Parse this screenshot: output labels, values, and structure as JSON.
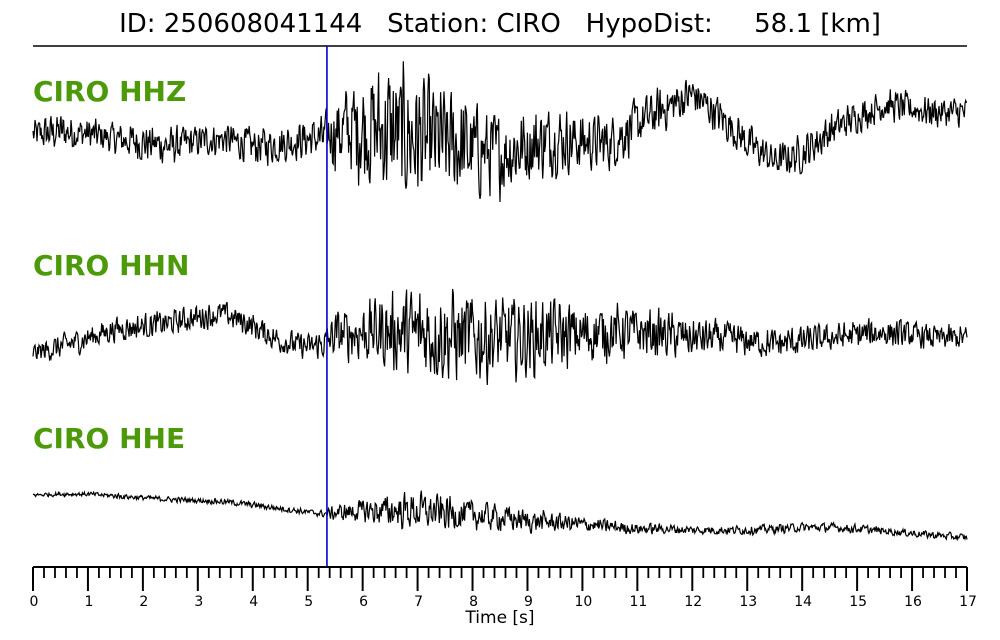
{
  "title": "ID: 250608041144   Station: CIRO   HypoDist:     58.1 [km]",
  "label_color": "#4c9a0a",
  "pick_line_color": "#0000cc",
  "chart_data": {
    "type": "line",
    "title": "ID: 250608041144   Station: CIRO   HypoDist:     58.1 [km]",
    "xlabel": "Time [s]",
    "ylabel": "",
    "xlim": [
      0,
      17
    ],
    "x_ticks": [
      "0",
      "1",
      "2",
      "3",
      "4",
      "5",
      "6",
      "7",
      "8",
      "9",
      "10",
      "11",
      "12",
      "13",
      "14",
      "15",
      "16",
      "17"
    ],
    "grid": false,
    "pick_time": 5.35,
    "series": [
      {
        "name": "CIRO HHZ",
        "envelope": {
          "t": [
            0,
            0.5,
            1,
            1.5,
            2,
            2.5,
            3,
            3.5,
            4,
            4.5,
            5,
            5.3,
            5.5,
            6,
            6.5,
            7,
            7.5,
            8,
            8.5,
            9,
            9.5,
            10,
            10.5,
            11,
            11.5,
            12,
            12.5,
            13,
            13.5,
            14,
            14.5,
            15,
            15.5,
            16,
            16.5,
            17
          ],
          "mean": [
            0,
            0.05,
            0.02,
            -0.05,
            -0.1,
            -0.15,
            -0.08,
            -0.05,
            -0.15,
            -0.12,
            -0.05,
            -0.03,
            0.05,
            0.1,
            0.05,
            -0.05,
            -0.1,
            -0.2,
            -0.25,
            -0.15,
            -0.05,
            -0.1,
            -0.1,
            0.15,
            0.35,
            0.55,
            0.25,
            -0.1,
            -0.35,
            -0.25,
            0.05,
            0.25,
            0.4,
            0.35,
            0.3,
            0.3
          ],
          "amp": [
            0.25,
            0.3,
            0.25,
            0.25,
            0.3,
            0.3,
            0.25,
            0.25,
            0.3,
            0.3,
            0.3,
            0.35,
            0.6,
            0.9,
            1.1,
            1.0,
            0.85,
            0.8,
            0.65,
            0.6,
            0.55,
            0.45,
            0.45,
            0.4,
            0.35,
            0.3,
            0.3,
            0.3,
            0.25,
            0.3,
            0.3,
            0.25,
            0.25,
            0.25,
            0.25,
            0.25
          ]
        }
      },
      {
        "name": "CIRO HHN",
        "envelope": {
          "t": [
            0,
            0.5,
            1,
            1.5,
            2,
            2.5,
            3,
            3.5,
            4,
            4.5,
            5,
            5.3,
            5.5,
            6,
            6.5,
            7,
            7.5,
            8,
            8.5,
            9,
            9.5,
            10,
            10.5,
            11,
            11.5,
            12,
            12.5,
            13,
            13.5,
            14,
            14.5,
            15,
            15.5,
            16,
            16.5,
            17
          ],
          "mean": [
            -0.3,
            -0.2,
            -0.05,
            0.1,
            0.15,
            0.2,
            0.3,
            0.35,
            0.15,
            -0.1,
            -0.2,
            -0.15,
            0.0,
            0.05,
            0.05,
            0.05,
            0.0,
            -0.05,
            -0.05,
            -0.05,
            0.0,
            0.0,
            0.05,
            0.05,
            0.0,
            -0.05,
            -0.05,
            -0.1,
            -0.15,
            -0.1,
            -0.05,
            0.0,
            0.05,
            0.0,
            -0.05,
            -0.05
          ],
          "amp": [
            0.2,
            0.25,
            0.25,
            0.25,
            0.25,
            0.25,
            0.25,
            0.25,
            0.25,
            0.25,
            0.25,
            0.3,
            0.45,
            0.6,
            0.75,
            0.9,
            0.95,
            0.9,
            0.8,
            0.75,
            0.7,
            0.6,
            0.55,
            0.5,
            0.45,
            0.4,
            0.35,
            0.3,
            0.3,
            0.3,
            0.25,
            0.3,
            0.3,
            0.25,
            0.25,
            0.25
          ]
        }
      },
      {
        "name": "CIRO HHE",
        "envelope": {
          "t": [
            0,
            0.5,
            1,
            1.5,
            2,
            2.5,
            3,
            3.5,
            4,
            4.5,
            5,
            5.3,
            5.5,
            6,
            6.5,
            7,
            7.5,
            8,
            8.5,
            9,
            9.5,
            10,
            10.5,
            11,
            11.5,
            12,
            12.5,
            13,
            13.5,
            14,
            14.5,
            15,
            15.5,
            16,
            16.5,
            17
          ],
          "mean": [
            0.4,
            0.42,
            0.42,
            0.38,
            0.34,
            0.3,
            0.28,
            0.25,
            0.18,
            0.1,
            0.02,
            -0.02,
            0.0,
            0.05,
            0.05,
            0.05,
            0.0,
            -0.05,
            -0.1,
            -0.18,
            -0.2,
            -0.25,
            -0.3,
            -0.35,
            -0.35,
            -0.38,
            -0.38,
            -0.38,
            -0.35,
            -0.32,
            -0.32,
            -0.35,
            -0.4,
            -0.45,
            -0.5,
            -0.55
          ],
          "amp": [
            0.05,
            0.06,
            0.06,
            0.07,
            0.07,
            0.07,
            0.07,
            0.08,
            0.08,
            0.08,
            0.08,
            0.09,
            0.2,
            0.3,
            0.42,
            0.5,
            0.45,
            0.4,
            0.35,
            0.3,
            0.25,
            0.2,
            0.18,
            0.15,
            0.13,
            0.12,
            0.12,
            0.12,
            0.12,
            0.12,
            0.12,
            0.12,
            0.1,
            0.1,
            0.1,
            0.1
          ]
        }
      }
    ]
  }
}
